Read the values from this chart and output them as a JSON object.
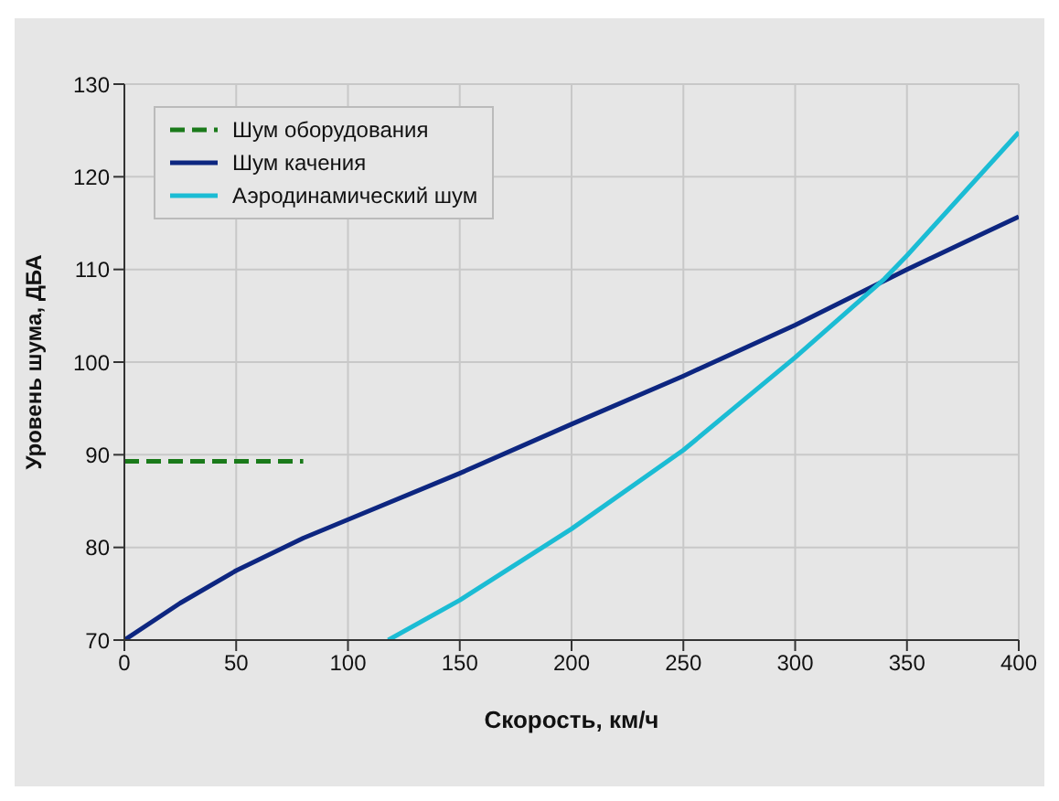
{
  "chart_data": {
    "type": "line",
    "xlabel": "Скорость, км/ч",
    "ylabel": "Уровень шума, ДБА",
    "xlim": [
      0,
      400
    ],
    "xticks": [
      0,
      50,
      100,
      150,
      200,
      250,
      300,
      350,
      400
    ],
    "ylim": [
      70,
      130
    ],
    "yticks": [
      70,
      80,
      90,
      100,
      110,
      120,
      130
    ],
    "grid": true,
    "legend": "top left",
    "marker": "none",
    "series": [
      {
        "name": "Шум оборудования",
        "color": "#1a7a1a",
        "line_style": "dashed",
        "x": [
          0,
          80
        ],
        "values": [
          89.3,
          89.3
        ]
      },
      {
        "name": "Шум качения",
        "color": "#0d2680",
        "line_style": "solid",
        "x": [
          0,
          25,
          50,
          80,
          100,
          150,
          200,
          250,
          300,
          350,
          400
        ],
        "values": [
          70,
          74,
          77.5,
          81,
          83,
          88,
          93.3,
          98.5,
          104,
          110,
          115.7
        ]
      },
      {
        "name": "Аэродинамический шум",
        "color": "#1bbcd4",
        "line_style": "solid",
        "x": [
          118,
          150,
          200,
          250,
          300,
          340,
          350,
          400
        ],
        "values": [
          70,
          74.3,
          82,
          90.5,
          100.5,
          109,
          111.5,
          124.8
        ]
      }
    ]
  }
}
